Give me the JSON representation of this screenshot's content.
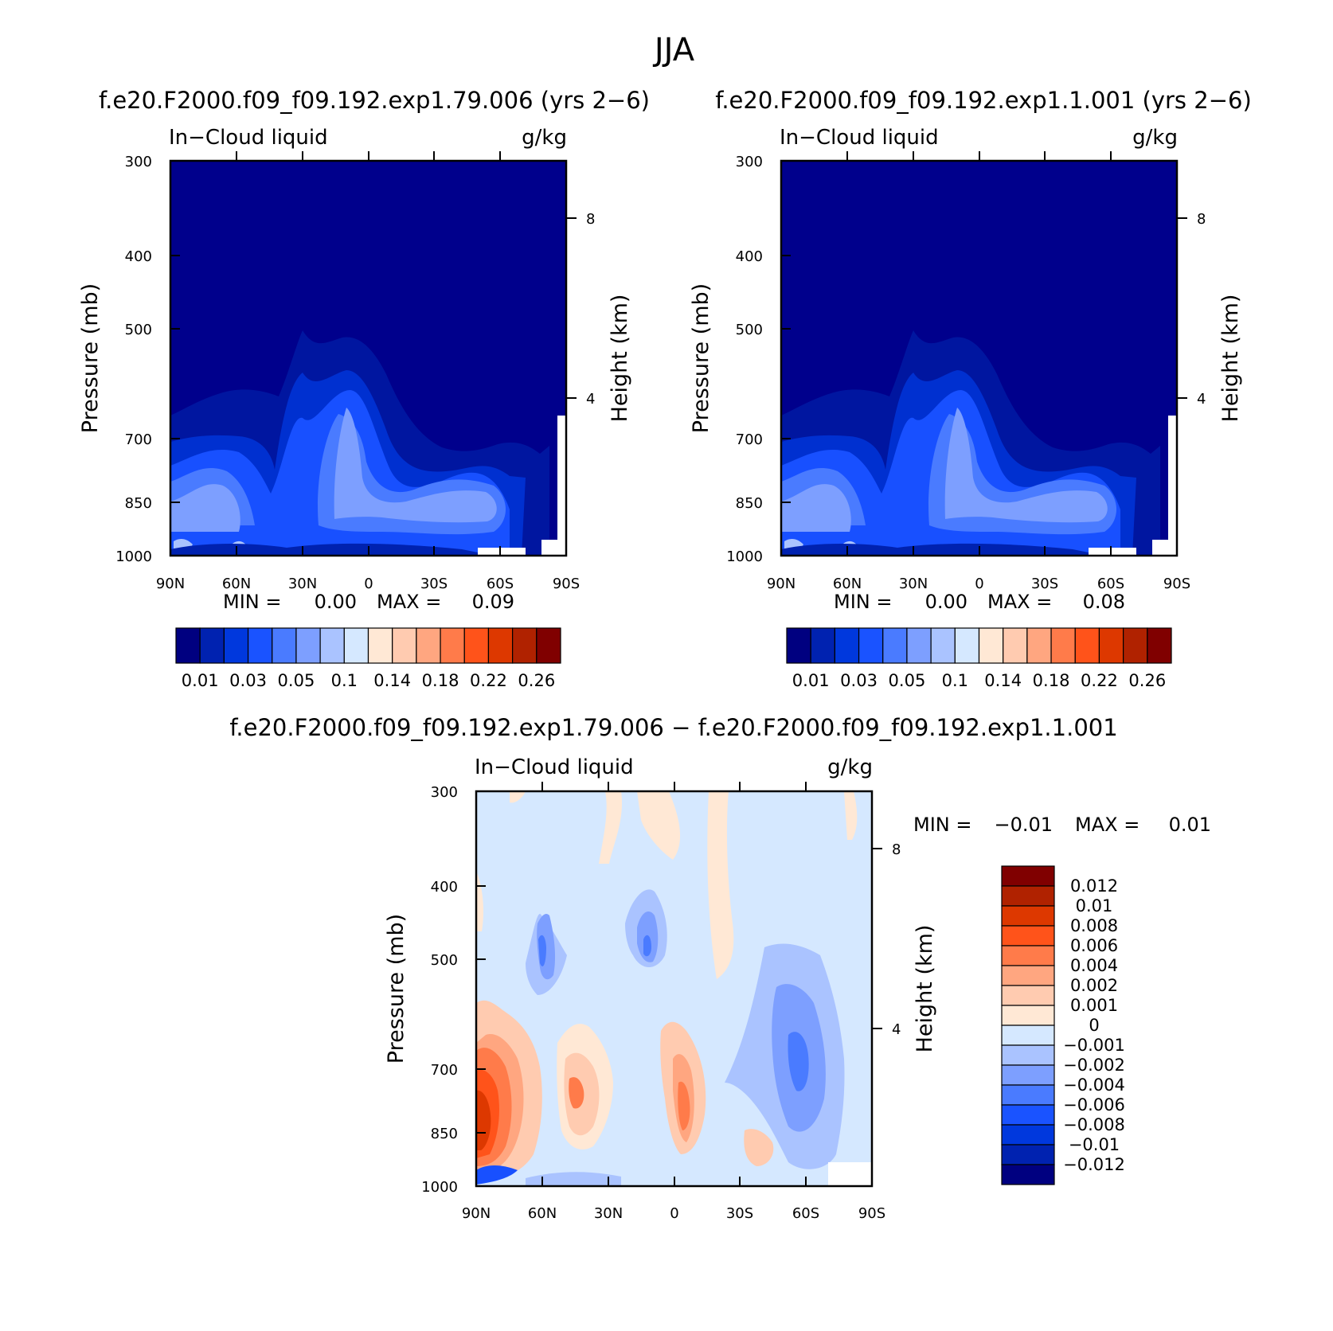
{
  "figure": {
    "title": "JJA"
  },
  "colors": {
    "panel_fill": "#00008c",
    "absolute_colormap": [
      "#000080",
      "#0022b0",
      "#0038dd",
      "#1a53ff",
      "#4a7bff",
      "#7d9fff",
      "#aac3ff",
      "#d5e8ff",
      "#ffe8d5",
      "#ffcbb0",
      "#ffa680",
      "#ff7b4a",
      "#ff531a",
      "#dd3800",
      "#b02200",
      "#800000"
    ],
    "diff_colormap": [
      "#000080",
      "#0022b0",
      "#0038dd",
      "#1a53ff",
      "#4a7bff",
      "#7d9fff",
      "#aac3ff",
      "#d5e8ff",
      "#ffe8d5",
      "#ffcbb0",
      "#ffa680",
      "#ff7b4a",
      "#ff531a",
      "#dd3800",
      "#b02200",
      "#800000"
    ]
  },
  "chart_data": [
    {
      "type": "heatmap",
      "panel_title": "f.e20.F2000.f09_f09.192.exp1.79.006 (yrs 2−6)",
      "variable_label": "In−Cloud liquid",
      "units": "g/kg",
      "ylabel": "Pressure (mb)",
      "ylabel_right": "Height (km)",
      "x_ticks": [
        "90N",
        "60N",
        "30N",
        "0",
        "30S",
        "60S",
        "90S"
      ],
      "y_ticks": [
        "300",
        "400",
        "500",
        "700",
        "850",
        "1000"
      ],
      "y_ticks_right": [
        "8",
        "4"
      ],
      "xlim": [
        90,
        -90
      ],
      "ylim": [
        1000,
        300
      ],
      "y_scale": "log",
      "min_label": "MIN =",
      "min_value": "0.00",
      "max_label": "MAX =",
      "max_value": "0.09",
      "min": 0.0,
      "max": 0.09,
      "colorbar": {
        "orientation": "horizontal",
        "labels": [
          "0.01",
          "0.03",
          "0.05",
          "0.1",
          "0.14",
          "0.18",
          "0.22",
          "0.26"
        ]
      }
    },
    {
      "type": "heatmap",
      "panel_title": "f.e20.F2000.f09_f09.192.exp1.1.001 (yrs 2−6)",
      "variable_label": "In−Cloud liquid",
      "units": "g/kg",
      "ylabel": "Pressure (mb)",
      "ylabel_right": "Height (km)",
      "x_ticks": [
        "90N",
        "60N",
        "30N",
        "0",
        "30S",
        "60S",
        "90S"
      ],
      "y_ticks": [
        "300",
        "400",
        "500",
        "700",
        "850",
        "1000"
      ],
      "y_ticks_right": [
        "8",
        "4"
      ],
      "xlim": [
        90,
        -90
      ],
      "ylim": [
        1000,
        300
      ],
      "y_scale": "log",
      "min_label": "MIN =",
      "min_value": "0.00",
      "max_label": "MAX =",
      "max_value": "0.08",
      "min": 0.0,
      "max": 0.08,
      "colorbar": {
        "orientation": "horizontal",
        "labels": [
          "0.01",
          "0.03",
          "0.05",
          "0.1",
          "0.14",
          "0.18",
          "0.22",
          "0.26"
        ]
      }
    },
    {
      "type": "heatmap",
      "panel_title": "f.e20.F2000.f09_f09.192.exp1.79.006 − f.e20.F2000.f09_f09.192.exp1.1.001",
      "variable_label": "In−Cloud liquid",
      "units": "g/kg",
      "ylabel": "Pressure (mb)",
      "ylabel_right": "Height (km)",
      "x_ticks": [
        "90N",
        "60N",
        "30N",
        "0",
        "30S",
        "60S",
        "90S"
      ],
      "y_ticks": [
        "300",
        "400",
        "500",
        "700",
        "850",
        "1000"
      ],
      "y_ticks_right": [
        "8",
        "4"
      ],
      "xlim": [
        90,
        -90
      ],
      "ylim": [
        1000,
        300
      ],
      "y_scale": "log",
      "min_label": "MIN =",
      "min_value": "−0.01",
      "max_label": "MAX =",
      "max_value": "0.01",
      "min": -0.01,
      "max": 0.01,
      "colorbar": {
        "orientation": "vertical",
        "labels": [
          "0.012",
          "0.01",
          "0.008",
          "0.006",
          "0.004",
          "0.002",
          "0.001",
          "0",
          "−0.001",
          "−0.002",
          "−0.004",
          "−0.006",
          "−0.008",
          "−0.01",
          "−0.012"
        ]
      }
    }
  ]
}
